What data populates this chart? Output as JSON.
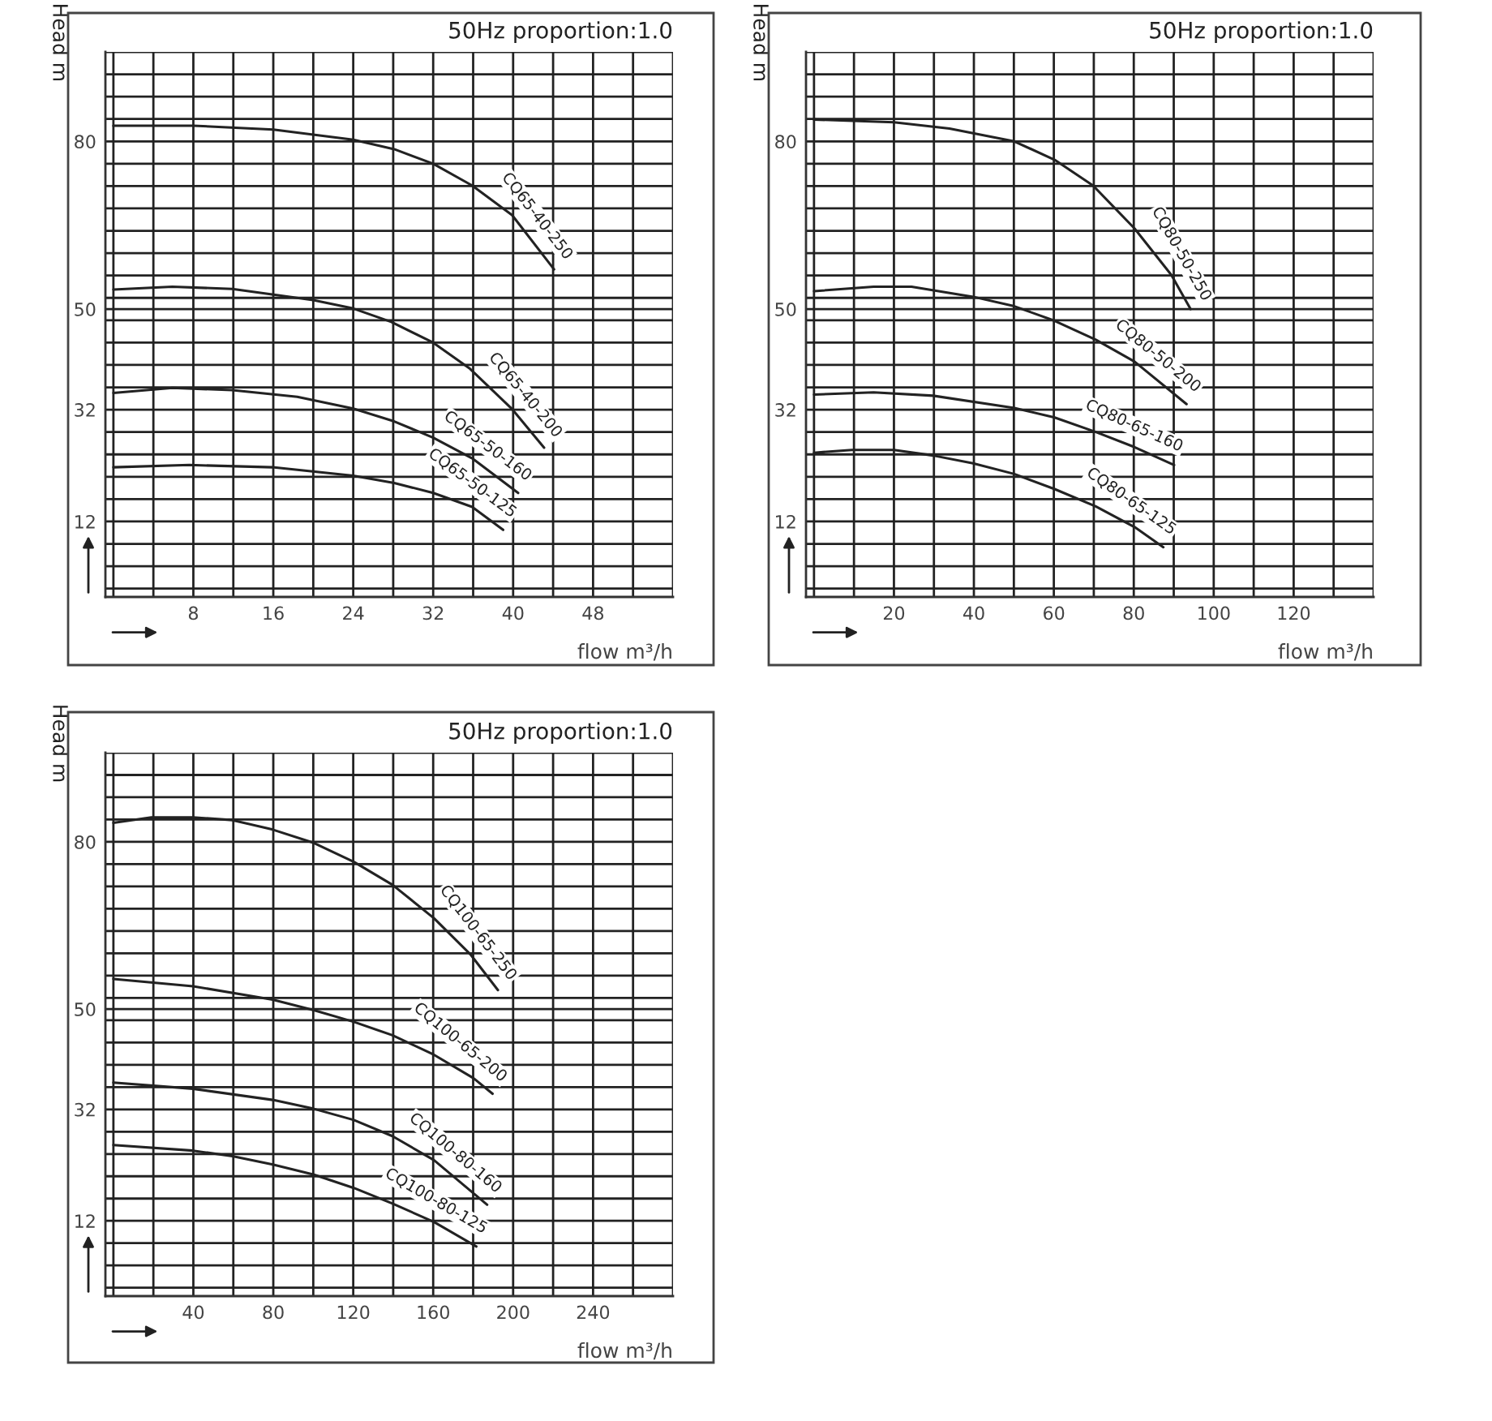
{
  "chart_data": [
    {
      "type": "line",
      "title": "50Hz proportion:1.0",
      "xlabel": "flow m³/h",
      "ylabel": "Head m",
      "grid": true,
      "xlim": [
        -0.8,
        56
      ],
      "ylim": [
        -1.5,
        96
      ],
      "xticks": [
        {
          "value": 0,
          "label": null
        },
        {
          "value": 4,
          "label": null
        },
        8,
        {
          "value": 12,
          "label": null
        },
        16,
        {
          "value": 20,
          "label": null
        },
        24,
        {
          "value": 28,
          "label": null
        },
        32,
        {
          "value": 36,
          "label": null
        },
        40,
        {
          "value": 44,
          "label": null
        },
        48,
        {
          "value": 52,
          "label": null
        },
        {
          "value": 56,
          "label": null
        }
      ],
      "yticks": [
        {
          "value": 0,
          "label": null
        },
        {
          "value": 4,
          "label": null
        },
        {
          "value": 8,
          "label": null
        },
        12,
        {
          "value": 16,
          "label": null
        },
        {
          "value": 20,
          "label": null
        },
        {
          "value": 24,
          "label": null
        },
        {
          "value": 28,
          "label": null
        },
        32,
        {
          "value": 36,
          "label": null
        },
        {
          "value": 40,
          "label": null
        },
        {
          "value": 44,
          "label": null
        },
        {
          "value": 48,
          "label": null
        },
        50,
        {
          "value": 52,
          "label": null
        },
        {
          "value": 56,
          "label": null
        },
        {
          "value": 60,
          "label": null
        },
        {
          "value": 64,
          "label": null
        },
        {
          "value": 68,
          "label": null
        },
        {
          "value": 72,
          "label": null
        },
        {
          "value": 76,
          "label": null
        },
        80,
        {
          "value": 84,
          "label": null
        },
        {
          "value": 88,
          "label": null
        },
        {
          "value": 92,
          "label": null
        },
        {
          "value": 96,
          "label": null
        }
      ],
      "series": [
        {
          "name": "CQ65-40-250",
          "color": "#222222",
          "x": [
            0,
            8,
            16,
            24,
            28.1,
            32,
            35.9,
            39.9,
            44.1
          ],
          "values": [
            82.8,
            82.8,
            82.1,
            80.3,
            78.6,
            76,
            72.1,
            66.8,
            57.1
          ]
        },
        {
          "name": "CQ65-40-200",
          "color": "#222222",
          "x": [
            0,
            5.9,
            11.9,
            20,
            24,
            27.8,
            32,
            35.7,
            39.9,
            43.1
          ],
          "values": [
            53.5,
            54,
            53.6,
            51.6,
            50.1,
            47.7,
            44,
            39.3,
            32.1,
            25.2
          ]
        },
        {
          "name": "CQ65-50-160",
          "color": "#222222",
          "x": [
            0,
            5.9,
            11.9,
            18.4,
            24,
            28.1,
            32,
            35.9,
            40.5
          ],
          "values": [
            35,
            35.9,
            35.5,
            34.3,
            32.2,
            29.9,
            27,
            23.3,
            17.1
          ]
        },
        {
          "name": "CQ65-50-125",
          "color": "#222222",
          "x": [
            0,
            7.6,
            15.9,
            24,
            28.1,
            32,
            35.9,
            39
          ],
          "values": [
            21.7,
            22.1,
            21.7,
            20.2,
            18.9,
            17.1,
            14.6,
            10.5
          ]
        }
      ]
    },
    {
      "type": "line",
      "title": "50Hz proportion:1.0",
      "xlabel": "flow m³/h",
      "ylabel": "Head m",
      "grid": true,
      "xlim": [
        -2,
        140
      ],
      "ylim": [
        -1.5,
        96
      ],
      "xticks": [
        {
          "value": 0,
          "label": null
        },
        {
          "value": 10,
          "label": null
        },
        20,
        {
          "value": 30,
          "label": null
        },
        40,
        {
          "value": 50,
          "label": null
        },
        60,
        {
          "value": 70,
          "label": null
        },
        80,
        {
          "value": 90,
          "label": null
        },
        100,
        {
          "value": 110,
          "label": null
        },
        120,
        {
          "value": 130,
          "label": null
        },
        {
          "value": 140,
          "label": null
        }
      ],
      "yticks": [
        {
          "value": 0,
          "label": null
        },
        {
          "value": 4,
          "label": null
        },
        {
          "value": 8,
          "label": null
        },
        12,
        {
          "value": 16,
          "label": null
        },
        {
          "value": 20,
          "label": null
        },
        {
          "value": 24,
          "label": null
        },
        {
          "value": 28,
          "label": null
        },
        32,
        {
          "value": 36,
          "label": null
        },
        {
          "value": 40,
          "label": null
        },
        {
          "value": 44,
          "label": null
        },
        {
          "value": 48,
          "label": null
        },
        50,
        {
          "value": 52,
          "label": null
        },
        {
          "value": 56,
          "label": null
        },
        {
          "value": 60,
          "label": null
        },
        {
          "value": 64,
          "label": null
        },
        {
          "value": 68,
          "label": null
        },
        {
          "value": 72,
          "label": null
        },
        {
          "value": 76,
          "label": null
        },
        80,
        {
          "value": 84,
          "label": null
        },
        {
          "value": 88,
          "label": null
        },
        {
          "value": 92,
          "label": null
        },
        {
          "value": 96,
          "label": null
        }
      ],
      "series": [
        {
          "name": "CQ80-50-250",
          "color": "#222222",
          "x": [
            0,
            20,
            33.9,
            50.1,
            60.2,
            69.8,
            80.2,
            89.4,
            94.2
          ],
          "values": [
            83.9,
            83.4,
            82.3,
            80,
            76.7,
            72.1,
            64.4,
            56.1,
            50
          ]
        },
        {
          "name": "CQ80-50-200",
          "color": "#222222",
          "x": [
            0,
            14.9,
            24.4,
            39.8,
            50.1,
            60.2,
            70.5,
            80.2,
            93.2
          ],
          "values": [
            53.2,
            54,
            54,
            52.2,
            50.5,
            47.9,
            44.5,
            40.6,
            33
          ]
        },
        {
          "name": "CQ80-65-160",
          "color": "#222222",
          "x": [
            0,
            14.9,
            29.8,
            50.1,
            60.2,
            70.5,
            80.2,
            90.1
          ],
          "values": [
            34.7,
            35.1,
            34.5,
            32.3,
            30.6,
            28,
            25.3,
            22.1
          ]
        },
        {
          "name": "CQ80-65-125",
          "color": "#222222",
          "x": [
            0,
            9.5,
            20,
            29.8,
            39.8,
            50.1,
            60.2,
            70.5,
            80.2,
            87.4
          ],
          "values": [
            24.3,
            24.8,
            24.8,
            23.8,
            22.4,
            20.5,
            17.8,
            14.7,
            11,
            7.4
          ]
        }
      ]
    },
    {
      "type": "line",
      "title": "50Hz proportion:1.0",
      "xlabel": "flow m³/h",
      "ylabel": "Head m",
      "grid": true,
      "xlim": [
        -4,
        280
      ],
      "ylim": [
        -1.5,
        96
      ],
      "xticks": [
        {
          "value": 0,
          "label": null
        },
        {
          "value": 20,
          "label": null
        },
        40,
        {
          "value": 60,
          "label": null
        },
        80,
        {
          "value": 100,
          "label": null
        },
        120,
        {
          "value": 140,
          "label": null
        },
        160,
        {
          "value": 180,
          "label": null
        },
        200,
        {
          "value": 220,
          "label": null
        },
        240,
        {
          "value": 260,
          "label": null
        },
        {
          "value": 280,
          "label": null
        }
      ],
      "yticks": [
        {
          "value": 0,
          "label": null
        },
        {
          "value": 4,
          "label": null
        },
        {
          "value": 8,
          "label": null
        },
        12,
        {
          "value": 16,
          "label": null
        },
        {
          "value": 20,
          "label": null
        },
        {
          "value": 24,
          "label": null
        },
        {
          "value": 28,
          "label": null
        },
        32,
        {
          "value": 36,
          "label": null
        },
        {
          "value": 40,
          "label": null
        },
        {
          "value": 44,
          "label": null
        },
        {
          "value": 48,
          "label": null
        },
        50,
        {
          "value": 52,
          "label": null
        },
        {
          "value": 56,
          "label": null
        },
        {
          "value": 60,
          "label": null
        },
        {
          "value": 64,
          "label": null
        },
        {
          "value": 68,
          "label": null
        },
        {
          "value": 72,
          "label": null
        },
        {
          "value": 76,
          "label": null
        },
        80,
        {
          "value": 84,
          "label": null
        },
        {
          "value": 88,
          "label": null
        },
        {
          "value": 92,
          "label": null
        },
        {
          "value": 96,
          "label": null
        }
      ],
      "series": [
        {
          "name": "CQ100-65-250",
          "color": "#222222",
          "x": [
            0,
            19,
            39.8,
            59.6,
            79.7,
            100.3,
            120.3,
            139.6,
            160.4,
            178.9,
            192.4
          ],
          "values": [
            83.4,
            84.4,
            84.4,
            83.9,
            82.2,
            79.8,
            76.4,
            72.3,
            66.3,
            59.7,
            53.4
          ]
        },
        {
          "name": "CQ100-65-200",
          "color": "#222222",
          "x": [
            0,
            39.8,
            79.7,
            100.3,
            120.3,
            139.6,
            160.4,
            180.2,
            189.7
          ],
          "values": [
            55.4,
            54.1,
            51.7,
            49.8,
            47.7,
            45.3,
            41.8,
            37.6,
            34.8
          ]
        },
        {
          "name": "CQ100-80-160",
          "color": "#222222",
          "x": [
            0,
            39.8,
            79.7,
            100.3,
            120.3,
            139.6,
            160.4,
            187
          ],
          "values": [
            36.8,
            35.7,
            33.7,
            32.1,
            30.1,
            27.2,
            22.9,
            14.9
          ]
        },
        {
          "name": "CQ100-80-125",
          "color": "#222222",
          "x": [
            0,
            39.8,
            59.6,
            79.7,
            100.3,
            120.3,
            139.6,
            160.4,
            181.6
          ],
          "values": [
            25.6,
            24.6,
            23.6,
            22.1,
            20.3,
            17.9,
            15.1,
            11.8,
            7.4
          ]
        }
      ]
    }
  ]
}
